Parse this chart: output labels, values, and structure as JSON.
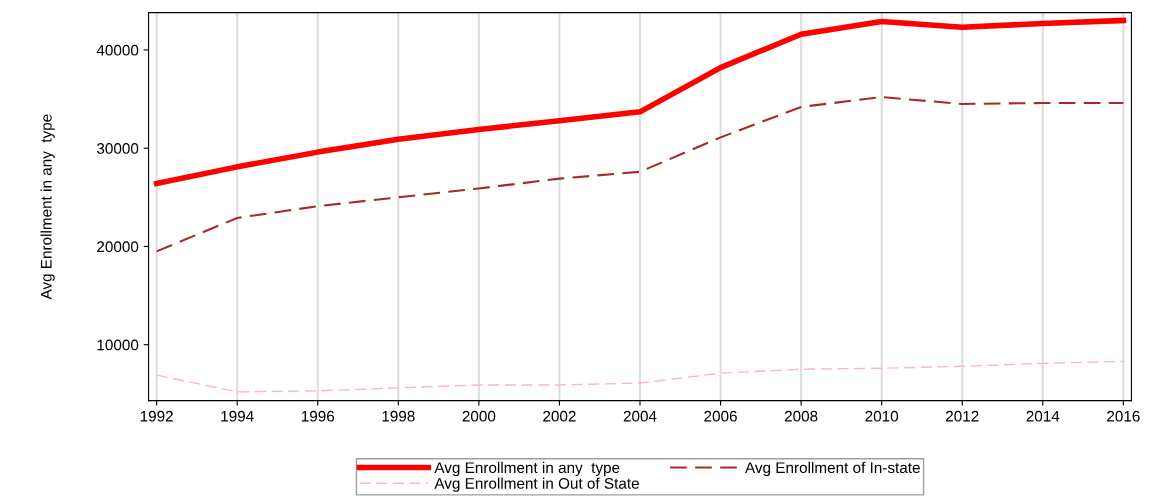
{
  "chart_data": {
    "type": "line",
    "ylabel": "Avg Enrollment in any  type",
    "x": [
      1992,
      1994,
      1996,
      1998,
      2000,
      2002,
      2004,
      2006,
      2008,
      2010,
      2012,
      2014,
      2016
    ],
    "series": [
      {
        "name": "Avg Enrollment in any  type",
        "color": "#ff0000",
        "line_style": "solid",
        "values": [
          26400,
          28100,
          29600,
          30900,
          31900,
          32800,
          33700,
          38200,
          41600,
          42900,
          42300,
          42700,
          43000
        ]
      },
      {
        "name": "Avg Enrollment of In-state",
        "color": "#a52a2a",
        "line_style": "dashed",
        "values": [
          19500,
          22900,
          24100,
          25000,
          25900,
          26900,
          27600,
          31100,
          34200,
          35200,
          34500,
          34600,
          34600
        ]
      },
      {
        "name": "Avg Enrollment in Out of State",
        "color": "#ffb6c1",
        "line_style": "dashed",
        "values": [
          6900,
          5200,
          5300,
          5600,
          5900,
          5900,
          6100,
          7100,
          7500,
          7600,
          7800,
          8100,
          8300
        ]
      }
    ],
    "xlim": [
      1991.8,
      2016.2
    ],
    "ylim": [
      4300,
      43800
    ],
    "xticks": [
      1992,
      1994,
      1996,
      1998,
      2000,
      2002,
      2004,
      2006,
      2008,
      2010,
      2012,
      2014,
      2016
    ],
    "yticks": [
      10000,
      20000,
      30000,
      40000
    ],
    "grid": "x",
    "legend": "bottom",
    "marker": "none"
  }
}
